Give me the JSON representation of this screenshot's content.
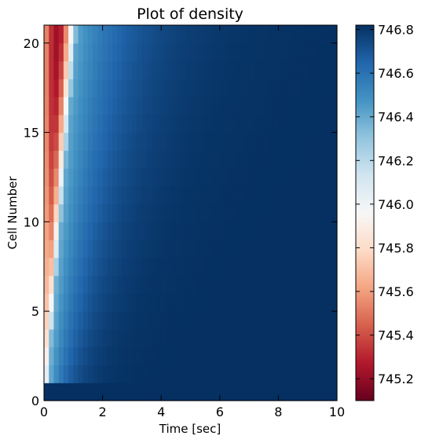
{
  "chart_data": {
    "type": "heatmap",
    "title": "Plot of density",
    "xlabel": "Time [sec]",
    "ylabel": "Cell Number",
    "xlim": [
      0,
      10
    ],
    "ylim": [
      0,
      21
    ],
    "xticks": [
      0,
      2,
      4,
      6,
      8,
      10
    ],
    "yticks": [
      0,
      5,
      10,
      15,
      20
    ],
    "colormap": "RdBu",
    "colorbar": {
      "vmin": 745.1,
      "vmax": 746.82,
      "ticks": [
        "745.2",
        "745.4",
        "745.6",
        "745.8",
        "746.0",
        "746.2",
        "746.4",
        "746.6",
        "746.8"
      ],
      "tick_values": [
        745.2,
        745.4,
        745.6,
        745.8,
        746.0,
        746.2,
        746.4,
        746.6,
        746.8
      ]
    },
    "grid": false,
    "description_of_field": {
      "min_value": 745.1,
      "max_value": 746.82,
      "cell_0_constant_value": 746.82,
      "minimum_location": "cell 20, t≈0.5 s",
      "front_time_at_cell_20_sec": 1.0,
      "front_time_at_cell_1_sec": 0.15
    }
  },
  "colors": {
    "cmap_stops": [
      "#67001f",
      "#b2182b",
      "#d6604d",
      "#f4a582",
      "#fddbc7",
      "#f7f7f7",
      "#d1e5f0",
      "#92c5de",
      "#4393c3",
      "#2166ac",
      "#053061"
    ]
  }
}
